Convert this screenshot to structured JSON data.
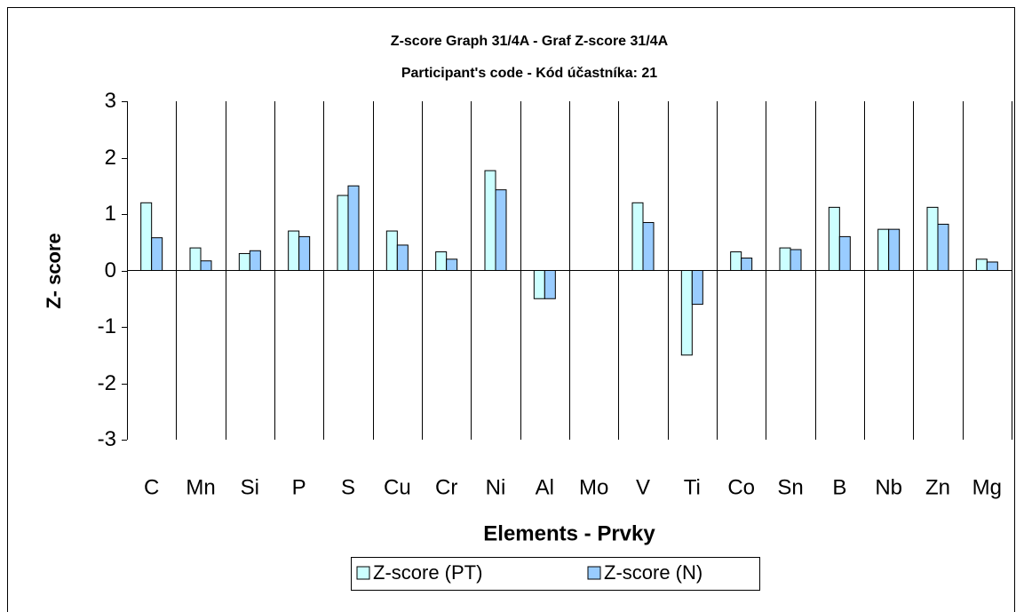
{
  "chart_data": {
    "type": "bar",
    "title": "Z-score Graph 31/4A - Graf Z-score 31/4A",
    "subtitle": "Participant's code - Kód účastníka:  21",
    "x_label": "Elements - Prvky",
    "y_label": "Z- score",
    "categories": [
      "C",
      "Mn",
      "Si",
      "P",
      "S",
      "Cu",
      "Cr",
      "Ni",
      "Al",
      "Mo",
      "V",
      "Ti",
      "Co",
      "Sn",
      "B",
      "Nb",
      "Zn",
      "Mg"
    ],
    "series": [
      {
        "name": "Z-score (PT)",
        "color": "#ccffff",
        "values": [
          1.2,
          0.4,
          0.3,
          0.7,
          1.33,
          0.7,
          0.33,
          1.77,
          -0.5,
          0,
          1.2,
          -1.5,
          0.33,
          0.4,
          1.12,
          0.73,
          1.12,
          0.2
        ]
      },
      {
        "name": "Z-score (N)",
        "color": "#99ccff",
        "values": [
          0.58,
          0.17,
          0.35,
          0.6,
          1.5,
          0.45,
          0.2,
          1.43,
          -0.5,
          0,
          0.85,
          -0.6,
          0.22,
          0.37,
          0.6,
          0.73,
          0.82,
          0.15
        ]
      }
    ],
    "ylim": [
      -3,
      3
    ],
    "yticks": [
      -3,
      -2,
      -1,
      0,
      1,
      2,
      3
    ],
    "grid": true,
    "legend": "bottom"
  }
}
